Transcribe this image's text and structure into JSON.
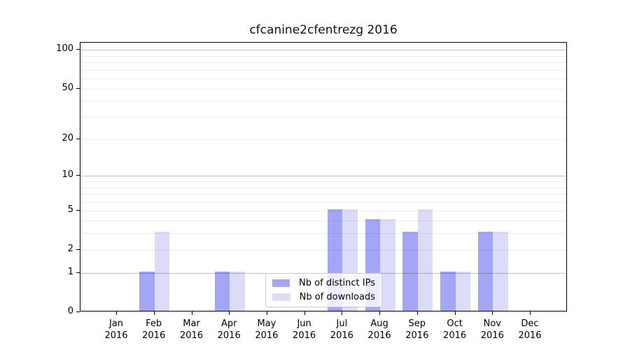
{
  "chart_data": {
    "type": "bar",
    "title": "cfcanine2cfentrezg 2016",
    "x_tick_labels": [
      {
        "month": "Jan",
        "year": "2016"
      },
      {
        "month": "Feb",
        "year": "2016"
      },
      {
        "month": "Mar",
        "year": "2016"
      },
      {
        "month": "Apr",
        "year": "2016"
      },
      {
        "month": "May",
        "year": "2016"
      },
      {
        "month": "Jun",
        "year": "2016"
      },
      {
        "month": "Jul",
        "year": "2016"
      },
      {
        "month": "Aug",
        "year": "2016"
      },
      {
        "month": "Sep",
        "year": "2016"
      },
      {
        "month": "Oct",
        "year": "2016"
      },
      {
        "month": "Nov",
        "year": "2016"
      },
      {
        "month": "Dec",
        "year": "2016"
      }
    ],
    "categories": [
      "Jan 2016",
      "Feb 2016",
      "Mar 2016",
      "Apr 2016",
      "May 2016",
      "Jun 2016",
      "Jul 2016",
      "Aug 2016",
      "Sep 2016",
      "Oct 2016",
      "Nov 2016",
      "Dec 2016"
    ],
    "series": [
      {
        "name": "Nb of distinct IPs",
        "key": "distinct-ips",
        "color": "#a5a5f5",
        "values": [
          0,
          1,
          0,
          1,
          0,
          0,
          5,
          4,
          3,
          1,
          3,
          0
        ]
      },
      {
        "name": "Nb of downloads",
        "key": "downloads",
        "color": "#dcdcf9",
        "values": [
          0,
          3,
          0,
          1,
          0,
          0,
          5,
          4,
          5,
          1,
          3,
          0
        ]
      }
    ],
    "y_axis": {
      "scale": "log10(1+x)",
      "tick_values": [
        0,
        1,
        2,
        5,
        10,
        20,
        50,
        100
      ],
      "major_grid_values": [
        1,
        10,
        100
      ],
      "minor_grid_values": [
        2,
        3,
        4,
        5,
        6,
        7,
        8,
        9,
        20,
        30,
        40,
        50,
        60,
        70,
        80,
        90
      ],
      "ylim": [
        0,
        115
      ]
    },
    "legend": {
      "position": "lower center",
      "frame_color": "#cccccc"
    },
    "grid": {
      "major_color": "rgba(0,0,0,0.24)",
      "minor_color": "rgba(0,0,0,0.07)",
      "drawn_above_bars": true
    }
  }
}
